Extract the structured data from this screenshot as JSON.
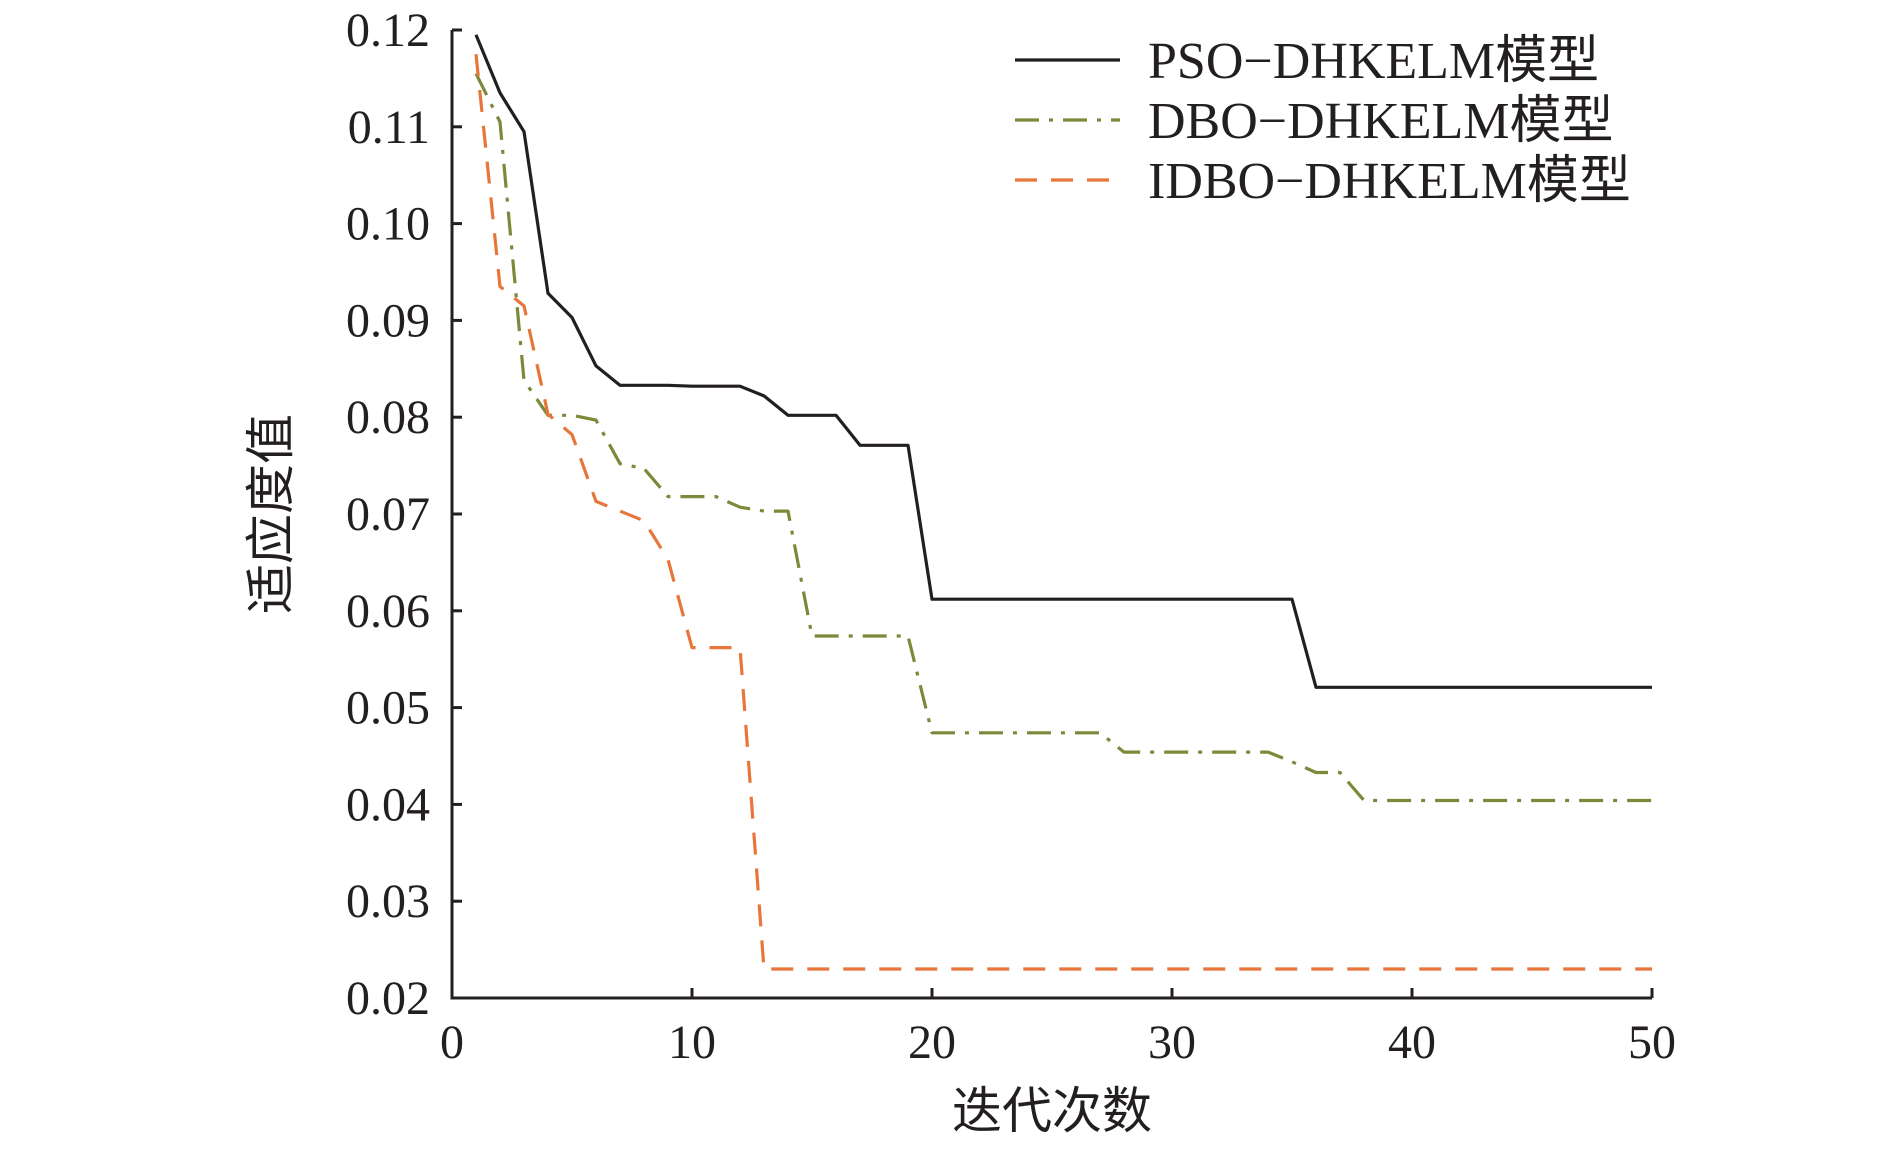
{
  "chart_data": {
    "type": "line",
    "title": "",
    "xlabel": "迭代次数",
    "ylabel": "适应度值",
    "xlim": [
      0,
      50
    ],
    "ylim": [
      0.02,
      0.12
    ],
    "xticks": [
      0,
      10,
      20,
      30,
      40,
      50
    ],
    "xtick_labels": [
      "0",
      "10",
      "20",
      "30",
      "40",
      "50"
    ],
    "yticks": [
      0.02,
      0.03,
      0.04,
      0.05,
      0.06,
      0.07,
      0.08,
      0.09,
      0.1,
      0.11,
      0.12
    ],
    "ytick_labels": [
      "0.02",
      "0.03",
      "0.04",
      "0.05",
      "0.06",
      "0.07",
      "0.08",
      "0.09",
      "0.10",
      "0.11",
      "0.12"
    ],
    "grid": false,
    "legend_position": "top-right",
    "series": [
      {
        "name": "PSO−DHKELM模型",
        "color": "#231f20",
        "style": "solid",
        "x": [
          1,
          2,
          3,
          4,
          5,
          6,
          7,
          8,
          9,
          10,
          11,
          12,
          13,
          14,
          15,
          16,
          17,
          18,
          19,
          20,
          21,
          25,
          30,
          35,
          36,
          40,
          45,
          50
        ],
        "y": [
          0.1195,
          0.1135,
          0.1095,
          0.0928,
          0.0903,
          0.0853,
          0.0833,
          0.0833,
          0.0833,
          0.0832,
          0.0832,
          0.0832,
          0.0822,
          0.0802,
          0.0802,
          0.0802,
          0.0771,
          0.0771,
          0.0771,
          0.0612,
          0.0612,
          0.0612,
          0.0612,
          0.0612,
          0.0521,
          0.0521,
          0.0521,
          0.0521
        ]
      },
      {
        "name": "DBO−DHKELM模型",
        "color": "#7b8a3a",
        "style": "dashdot",
        "x": [
          1,
          2,
          3,
          4,
          5,
          6,
          7,
          8,
          9,
          10,
          11,
          12,
          13,
          14,
          15,
          16,
          17,
          18,
          19,
          20,
          21,
          25,
          27,
          28,
          30,
          34,
          35,
          36,
          37,
          38,
          40,
          45,
          50
        ],
        "y": [
          0.1155,
          0.1105,
          0.0838,
          0.0802,
          0.0802,
          0.0797,
          0.0752,
          0.0747,
          0.0718,
          0.0718,
          0.0718,
          0.0707,
          0.0703,
          0.0703,
          0.0574,
          0.0574,
          0.0574,
          0.0574,
          0.0574,
          0.0474,
          0.0474,
          0.0474,
          0.0474,
          0.0454,
          0.0454,
          0.0454,
          0.0444,
          0.0433,
          0.0433,
          0.0404,
          0.0404,
          0.0404,
          0.0404
        ]
      },
      {
        "name": "IDBO−DHKELM模型",
        "color": "#e8763a",
        "style": "dashed",
        "x": [
          1,
          2,
          3,
          4,
          5,
          6,
          7,
          8,
          9,
          10,
          11,
          12,
          13,
          14,
          20,
          30,
          40,
          50
        ],
        "y": [
          0.1175,
          0.0935,
          0.0915,
          0.0803,
          0.0782,
          0.0713,
          0.0703,
          0.0693,
          0.0653,
          0.0562,
          0.0562,
          0.0562,
          0.023,
          0.023,
          0.023,
          0.023,
          0.023,
          0.023
        ]
      }
    ]
  }
}
